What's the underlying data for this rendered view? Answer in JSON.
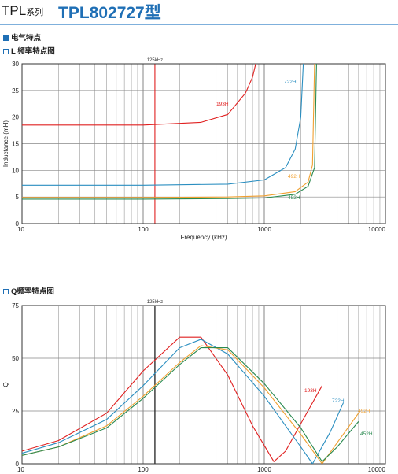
{
  "header": {
    "series_name": "TPL",
    "series_suffix": "系列",
    "model": "TPL802727型"
  },
  "sections": {
    "electrical": "电气特点",
    "l_chart_title": "L 频率特点图",
    "q_chart_title": "Q频率特点图"
  },
  "colors": {
    "193H": "#e02020",
    "722H": "#2a8ec0",
    "492H": "#f0a030",
    "452H": "#2a8a50",
    "marker": "#e02020",
    "accent": "#1f6fb5"
  },
  "chart_data": [
    {
      "type": "line",
      "title": "L 频率特点图",
      "xlabel": "Frequency (kHz)",
      "ylabel": "Inductance (mH)",
      "xscale": "log",
      "xlim": [
        10,
        10000
      ],
      "ylim": [
        0,
        30
      ],
      "yticks": [
        0,
        5,
        10,
        15,
        20,
        25,
        30
      ],
      "xticks": [
        10,
        100,
        1000,
        10000
      ],
      "marker_line": {
        "x": 125,
        "label": "125kHz"
      },
      "grid": true,
      "series": [
        {
          "name": "193H",
          "x": [
            10,
            100,
            300,
            500,
            700,
            800,
            850
          ],
          "values": [
            18.5,
            18.5,
            19.0,
            20.5,
            24.5,
            27.5,
            30
          ]
        },
        {
          "name": "722H",
          "x": [
            10,
            100,
            500,
            1000,
            1500,
            1800,
            2000,
            2100
          ],
          "values": [
            7.2,
            7.2,
            7.4,
            8.2,
            10.5,
            14.0,
            20.0,
            30
          ]
        },
        {
          "name": "492H",
          "x": [
            10,
            100,
            500,
            1000,
            1800,
            2300,
            2500,
            2600
          ],
          "values": [
            4.9,
            4.9,
            5.0,
            5.2,
            6.0,
            7.8,
            11.0,
            30
          ]
        },
        {
          "name": "452H",
          "x": [
            10,
            100,
            500,
            1000,
            1800,
            2300,
            2600,
            2700
          ],
          "values": [
            4.6,
            4.6,
            4.7,
            4.8,
            5.5,
            7.0,
            10.5,
            30
          ]
        }
      ]
    },
    {
      "type": "line",
      "title": "Q频率特点图",
      "xlabel": "",
      "ylabel": "Q",
      "xscale": "log",
      "xlim": [
        10,
        10000
      ],
      "ylim": [
        0,
        75
      ],
      "yticks": [
        0,
        25,
        50,
        75
      ],
      "xticks": [
        10,
        100,
        1000,
        10000
      ],
      "marker_line": {
        "x": 125,
        "label": "125kHz"
      },
      "grid": true,
      "series": [
        {
          "name": "193H",
          "x": [
            10,
            20,
            50,
            100,
            200,
            300,
            500,
            800,
            1200,
            1500,
            2000,
            3000
          ],
          "values": [
            6,
            11,
            24,
            44,
            60,
            60,
            42,
            18,
            1,
            6,
            19,
            37
          ]
        },
        {
          "name": "722H",
          "x": [
            10,
            20,
            50,
            100,
            200,
            300,
            500,
            1000,
            2000,
            2500,
            3500,
            4500
          ],
          "values": [
            5,
            10,
            21,
            37,
            55,
            59,
            52,
            32,
            8,
            0,
            15,
            29
          ]
        },
        {
          "name": "492H",
          "x": [
            10,
            20,
            50,
            100,
            200,
            300,
            500,
            1000,
            2000,
            3000,
            4000,
            6000
          ],
          "values": [
            4,
            8,
            18,
            32,
            48,
            56,
            54,
            36,
            14,
            0,
            10,
            24
          ]
        },
        {
          "name": "452H",
          "x": [
            10,
            20,
            50,
            100,
            200,
            300,
            500,
            1000,
            2000,
            3000,
            4000,
            6000
          ],
          "values": [
            4,
            8,
            17,
            31,
            47,
            55,
            55,
            38,
            17,
            1,
            8,
            20
          ]
        }
      ]
    }
  ]
}
